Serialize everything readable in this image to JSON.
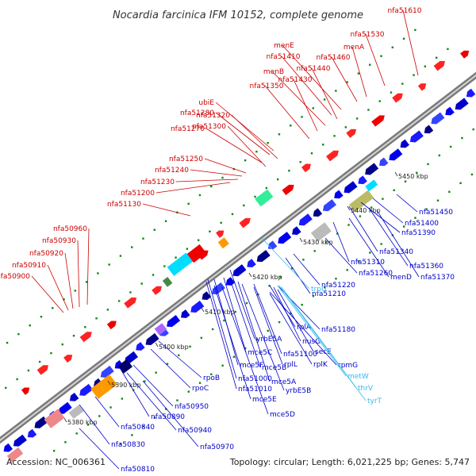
{
  "title": "Nocardia farcinica IFM 10152, complete genome",
  "accession": "Accession: NC_006361",
  "summary": "Topology: circular; Length: 6,021,225 bp; Genes: 5,747",
  "colors": {
    "upper_label": "#cc0000",
    "lower_label": "#0000cc",
    "rna_label": "#33bbee",
    "backbone": "#999999",
    "dot": "#118811"
  },
  "ticks": [
    "5380 kbp",
    "5390 kbp",
    "5400 kbp",
    "5410 kbp",
    "5420 kbp",
    "5430 kbp",
    "5440 kbp",
    "5450 kbp"
  ],
  "upper_labels": [
    "nfa51610",
    "nfa51530",
    "menA",
    "nfa51460",
    "menE",
    "nfa51410",
    "nfa51440",
    "menB",
    "nfa51430",
    "nfa51350",
    "ubiE",
    "nfa51280",
    "nfa51320",
    "nfa51270",
    "nfa51300",
    "nfa51250",
    "nfa51240",
    "nfa51230",
    "nfa51200",
    "nfa51130",
    "nfa50960",
    "nfa50930",
    "nfa50920",
    "nfa50910",
    "nfa50900"
  ],
  "lower_labels": [
    "nfa51450",
    "nfa51400",
    "nfa51390",
    "nfa51340",
    "nfa51310",
    "nfa51360",
    "nfa51260",
    "menD",
    "nfa51370",
    "nfa51220",
    "nfa51210",
    "nfa51180",
    "rplA",
    "nusG",
    "secE",
    "rplK",
    "rpmG",
    "nfa51100",
    "rplL",
    "yrbE5A",
    "mce5C",
    "mce5F",
    "mce5B",
    "mce5A",
    "nfa51000",
    "yrbE5B",
    "rpoB",
    "nfa51010",
    "mce5E",
    "rpoC",
    "mce5D",
    "nfa50950",
    "nfa50890",
    "nfa50940",
    "nfa50840",
    "nfa50970",
    "nfa50830",
    "nfa50810"
  ],
  "rna_labels": [
    "trpU",
    "metW",
    "thrV",
    "tyrT"
  ]
}
